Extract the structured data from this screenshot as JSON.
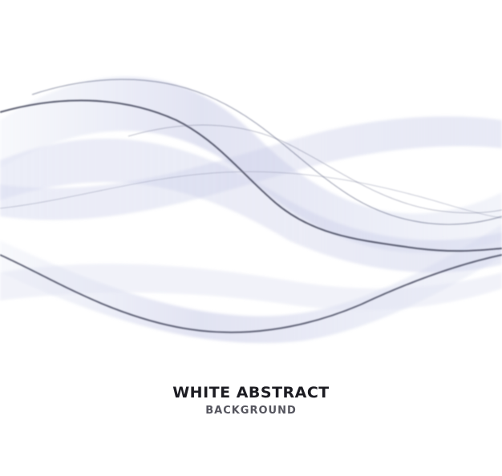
{
  "headline": {
    "title": "WHITE ABSTRACT",
    "subtitle": "BACKGROUND"
  },
  "palette": {
    "background": "#ffffff",
    "wave_fill": "#dcdff0",
    "wave_stroke": "#4a4e66",
    "title_color": "#1c1c22",
    "subtitle_color": "#55555e"
  }
}
